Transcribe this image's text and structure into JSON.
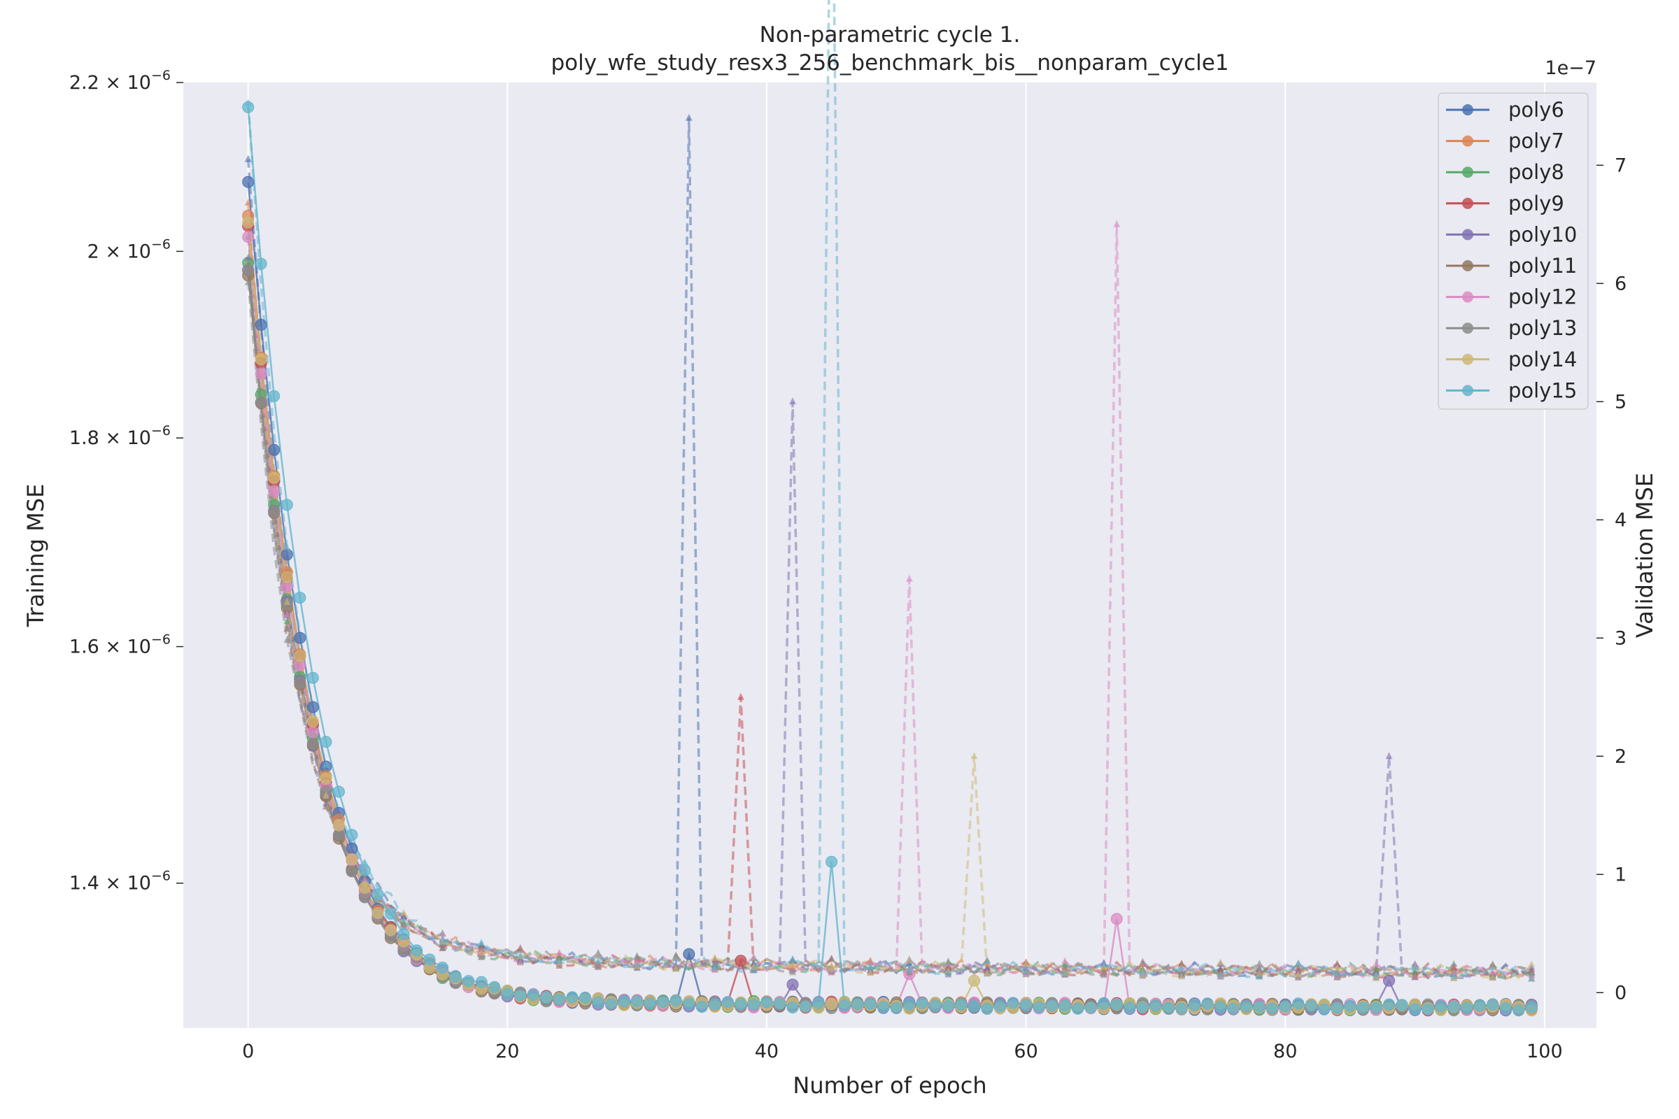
{
  "chart_data": {
    "type": "line",
    "title": "Non-parametric cycle 1.",
    "subtitle": "poly_wfe_study_resx3_256_benchmark_bis__nonparam_cycle1",
    "xlabel": "Number of epoch",
    "ylabel": "Training MSE",
    "y2label": "Validation MSE",
    "y2_offset_text": "1e−7",
    "xlim": [
      -5,
      104
    ],
    "ylim": [
      1.29e-06,
      2.2e-06
    ],
    "y2lim": [
      -3e-09,
      7.7e-08
    ],
    "yscale": "log",
    "grid": true,
    "legend_position": "top-right",
    "x_ticks": [
      0,
      20,
      40,
      60,
      80,
      100
    ],
    "x_tick_labels": [
      "0",
      "20",
      "40",
      "60",
      "80",
      "100"
    ],
    "y_ticks": [
      1.4e-06,
      1.6e-06,
      1.8e-06,
      2e-06,
      2.2e-06
    ],
    "y_tick_labels": [
      "1.4",
      "1.6",
      "1.8",
      "2",
      "2.2"
    ],
    "y_tick_exponent": "−6",
    "y2_ticks": [
      0,
      1e-08,
      2e-08,
      3e-08,
      4e-08,
      5e-08,
      6e-08,
      7e-08
    ],
    "y2_tick_labels": [
      "0",
      "1",
      "2",
      "3",
      "4",
      "5",
      "6",
      "7"
    ],
    "training_curve_model": {
      "floor": 1.305e-06,
      "decay": 4.2
    },
    "validation_curve_model": {
      "floor": 1e-09,
      "decay": 4.0
    },
    "series": [
      {
        "name": "poly6",
        "color": "#4c72b0",
        "train_start": 2.07e-06,
        "val_start": 6.8e-08,
        "spikes": [
          {
            "x": 34,
            "train": 1.345e-06,
            "val": 7.4e-08
          }
        ]
      },
      {
        "name": "poly7",
        "color": "#dd8452",
        "train_start": 2.03e-06,
        "val_start": 6.4e-08,
        "spikes": []
      },
      {
        "name": "poly8",
        "color": "#55a868",
        "train_start": 1.98e-06,
        "val_start": 6.1e-08,
        "spikes": []
      },
      {
        "name": "poly9",
        "color": "#c44e52",
        "train_start": 2.02e-06,
        "val_start": 6.3e-08,
        "spikes": [
          {
            "x": 38,
            "train": 1.34e-06,
            "val": 2.5e-08
          }
        ]
      },
      {
        "name": "poly10",
        "color": "#8172b3",
        "train_start": 1.97e-06,
        "val_start": 6e-08,
        "spikes": [
          {
            "x": 42,
            "train": 1.322e-06,
            "val": 5e-08
          },
          {
            "x": 88,
            "train": 1.325e-06,
            "val": 2e-08
          }
        ]
      },
      {
        "name": "poly11",
        "color": "#937860",
        "train_start": 1.965e-06,
        "val_start": 5.9e-08,
        "spikes": []
      },
      {
        "name": "poly12",
        "color": "#da8bc3",
        "train_start": 2.005e-06,
        "val_start": 6.2e-08,
        "spikes": [
          {
            "x": 51,
            "train": 1.33e-06,
            "val": 3.5e-08
          },
          {
            "x": 67,
            "train": 1.372e-06,
            "val": 6.5e-08
          }
        ]
      },
      {
        "name": "poly13",
        "color": "#8c8c8c",
        "train_start": 1.97e-06,
        "val_start": 5.8e-08,
        "spikes": []
      },
      {
        "name": "poly14",
        "color": "#ccb974",
        "train_start": 2.025e-06,
        "val_start": 6.3e-08,
        "spikes": [
          {
            "x": 56,
            "train": 1.325e-06,
            "val": 2e-08
          }
        ]
      },
      {
        "name": "poly15",
        "color": "#64b5cd",
        "train_start": 2.16e-06,
        "val_start": 7.3e-08,
        "spikes": [
          {
            "x": 45,
            "train": 1.417e-06,
            "val": 1.05e-07
          }
        ]
      }
    ]
  }
}
